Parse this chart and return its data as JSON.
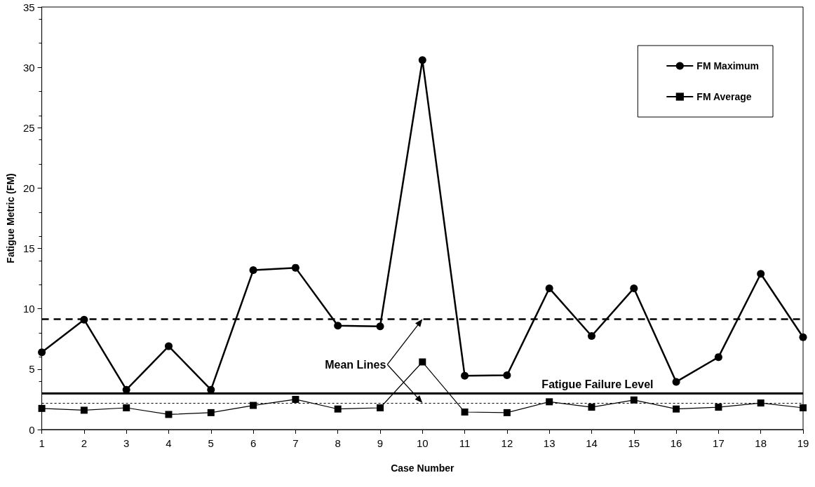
{
  "chart_data": {
    "type": "line",
    "xlabel": "Case Number",
    "ylabel": "Fatigue Metric (FM)",
    "x": [
      1,
      2,
      3,
      4,
      5,
      6,
      7,
      8,
      9,
      10,
      11,
      12,
      13,
      14,
      15,
      16,
      17,
      18,
      19
    ],
    "xlim": [
      1,
      19
    ],
    "xticks": [
      1,
      2,
      3,
      4,
      5,
      6,
      7,
      8,
      9,
      10,
      11,
      12,
      13,
      14,
      15,
      16,
      17,
      18,
      19
    ],
    "ylim": [
      0,
      35
    ],
    "yticks": [
      0,
      5,
      10,
      15,
      20,
      25,
      30,
      35
    ],
    "series": [
      {
        "name": "FM Maximum",
        "color": "#000000",
        "marker": "circle",
        "values": [
          6.4,
          9.1,
          3.3,
          6.9,
          3.3,
          13.2,
          13.4,
          8.6,
          8.55,
          30.6,
          4.45,
          4.5,
          11.7,
          7.75,
          11.7,
          3.95,
          6.0,
          12.9,
          7.65
        ]
      },
      {
        "name": "FM Average",
        "color": "#000000",
        "marker": "square",
        "values": [
          1.75,
          1.6,
          1.8,
          1.25,
          1.4,
          2.0,
          2.5,
          1.7,
          1.8,
          5.6,
          1.45,
          1.4,
          2.3,
          1.85,
          2.45,
          1.7,
          1.85,
          2.2,
          1.8
        ]
      }
    ],
    "ref_lines": [
      {
        "axis": "y",
        "value": 9.15,
        "label": null,
        "color": "#000000",
        "line_style": "dashed"
      },
      {
        "axis": "y",
        "value": 3.0,
        "label": "Fatigue Failure Level",
        "color": "#000000",
        "line_style": "solid"
      },
      {
        "axis": "y",
        "value": 2.2,
        "label": null,
        "color": "#000000",
        "line_style": "dotted"
      }
    ],
    "annotations": [
      {
        "text": "Mean Lines",
        "x": 10,
        "y": 9.15
      }
    ],
    "legend": "top right",
    "grid": false,
    "line_style": "solid"
  }
}
